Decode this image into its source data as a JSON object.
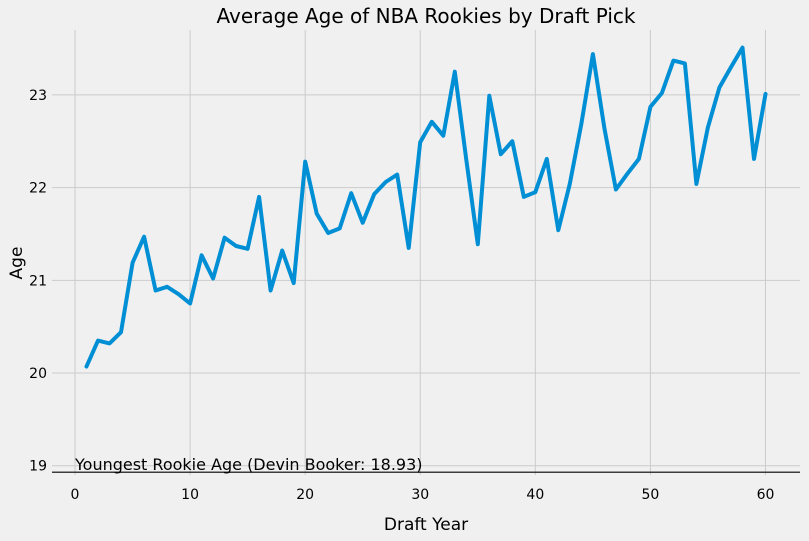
{
  "chart_data": {
    "type": "line",
    "title": "Average Age of NBA Rookies by Draft Pick",
    "xlabel": "Draft Year",
    "ylabel": "Age",
    "xlim": [
      -2,
      63
    ],
    "ylim": [
      18.9,
      23.7
    ],
    "xticks": [
      0,
      10,
      20,
      30,
      40,
      50,
      60
    ],
    "yticks": [
      19,
      20,
      21,
      22,
      23
    ],
    "grid": true,
    "line_color": "#008fd5",
    "series": [
      {
        "x": [
          1,
          2,
          3,
          4,
          5,
          6,
          7,
          8,
          9,
          10,
          11,
          12,
          13,
          14,
          15,
          16,
          17,
          18,
          19,
          20,
          21,
          22,
          23,
          24,
          25,
          26,
          27,
          28,
          29,
          30,
          31,
          32,
          33,
          34,
          35,
          36,
          37,
          38,
          39,
          40,
          41,
          42,
          43,
          44,
          45,
          46,
          47,
          48,
          49,
          50,
          51,
          52,
          53,
          54,
          55,
          56,
          57,
          58,
          59,
          60
        ],
        "values": [
          20.07,
          20.35,
          20.32,
          20.44,
          21.19,
          21.47,
          20.89,
          20.93,
          20.85,
          20.75,
          21.27,
          21.02,
          21.46,
          21.37,
          21.34,
          21.9,
          20.89,
          21.32,
          20.97,
          22.28,
          21.72,
          21.51,
          21.56,
          21.94,
          21.62,
          21.93,
          22.06,
          22.14,
          21.35,
          22.49,
          22.71,
          22.56,
          23.25,
          22.3,
          21.39,
          22.99,
          22.36,
          22.5,
          21.9,
          21.95,
          22.31,
          21.54,
          22.04,
          22.69,
          23.44,
          22.64,
          21.98,
          22.15,
          22.31,
          22.87,
          23.02,
          23.37,
          23.34,
          22.04,
          22.65,
          23.08,
          23.3,
          23.51,
          22.31,
          23.01
        ]
      }
    ],
    "annotations": [
      {
        "text": "Youngest Rookie Age (Devin Booker: 18.93)",
        "y": 18.93,
        "x": 0
      }
    ]
  }
}
